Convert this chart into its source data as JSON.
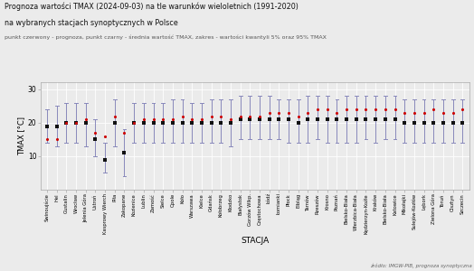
{
  "title_line1": "Prognoza wartości TMAX (2024-09-03) na tle warunków wieloletnich (1991-2020)",
  "title_line2": "na wybranych stacjach synoptycznych w Polsce",
  "subtitle": "punkt czerwony - prognoza, punkt czarny - średnia wartość TMAX, zakres - wartości kwantyli 5% oraz 95% TMAX",
  "xlabel": "STACJA",
  "ylabel": "TMAX [°C]",
  "source": "źródło: IMGW-PIB, prognoza synoptyczna",
  "stations": [
    "Świnoujście",
    "Hel",
    "Gustalin",
    "Wrocław",
    "Jelenia Góra",
    "Ustroń",
    "Kasprowy Wierch",
    "Piła",
    "Zakopane",
    "Kozienice",
    "Lublin",
    "Zamość",
    "Sielce",
    "Opole",
    "Koło",
    "Warszawa",
    "Kielce",
    "Gdańsk",
    "Kołobrzeg",
    "Kłodzko",
    "Białystok",
    "Gorzów Wlkp.",
    "Częstochowa",
    "Łódź",
    "Łomianki",
    "Płock",
    "Elbląg",
    "Tarnów",
    "Rzeszów",
    "Krosno",
    "Poznań",
    "Bielsko-Biała",
    "Wierzbica-Biała",
    "Kędzierzyn-Koźle",
    "Kraków",
    "Bielsko-Biała",
    "Katowice",
    "Mikołajki",
    "Sulejów-Kozłów",
    "Lębork",
    "Zielona Góra",
    "Toruń",
    "Olsztyn",
    "Szczecin"
  ],
  "mean": [
    19,
    19,
    20,
    20,
    20,
    15,
    9,
    20,
    11,
    20,
    20,
    20,
    20,
    20,
    20,
    20,
    20,
    20,
    20,
    20,
    21,
    21,
    21,
    21,
    21,
    21,
    20,
    21,
    21,
    21,
    21,
    21,
    21,
    21,
    21,
    21,
    21,
    20,
    20,
    20,
    20,
    20,
    20,
    20
  ],
  "q05": [
    14,
    13,
    14,
    14,
    13,
    10,
    5,
    13,
    4,
    14,
    14,
    14,
    14,
    14,
    14,
    14,
    14,
    14,
    14,
    13,
    15,
    15,
    15,
    15,
    15,
    14,
    14,
    14,
    15,
    14,
    14,
    14,
    14,
    15,
    14,
    15,
    15,
    14,
    14,
    14,
    14,
    14,
    14,
    14
  ],
  "q95": [
    24,
    25,
    26,
    26,
    26,
    21,
    14,
    27,
    18,
    26,
    26,
    26,
    26,
    27,
    27,
    26,
    26,
    27,
    27,
    27,
    28,
    28,
    28,
    28,
    27,
    27,
    27,
    28,
    28,
    28,
    27,
    28,
    28,
    28,
    28,
    28,
    28,
    27,
    27,
    27,
    27,
    27,
    27,
    27
  ],
  "forecast": [
    15,
    15,
    20,
    20,
    21,
    17,
    16,
    22,
    17,
    20,
    21,
    21,
    21,
    21,
    22,
    21,
    21,
    22,
    22,
    21,
    22,
    22,
    22,
    23,
    23,
    23,
    22,
    23,
    24,
    24,
    23,
    24,
    24,
    24,
    24,
    24,
    24,
    23,
    23,
    23,
    24,
    23,
    23,
    24
  ],
  "bg_color": "#ebebeb",
  "grid_color": "#ffffff",
  "bar_color": "#8888bb",
  "mean_color": "#111111",
  "forecast_color": "#cc0000",
  "ylim_min": 0,
  "ylim_max": 32,
  "yticks": [
    10,
    20,
    30
  ]
}
